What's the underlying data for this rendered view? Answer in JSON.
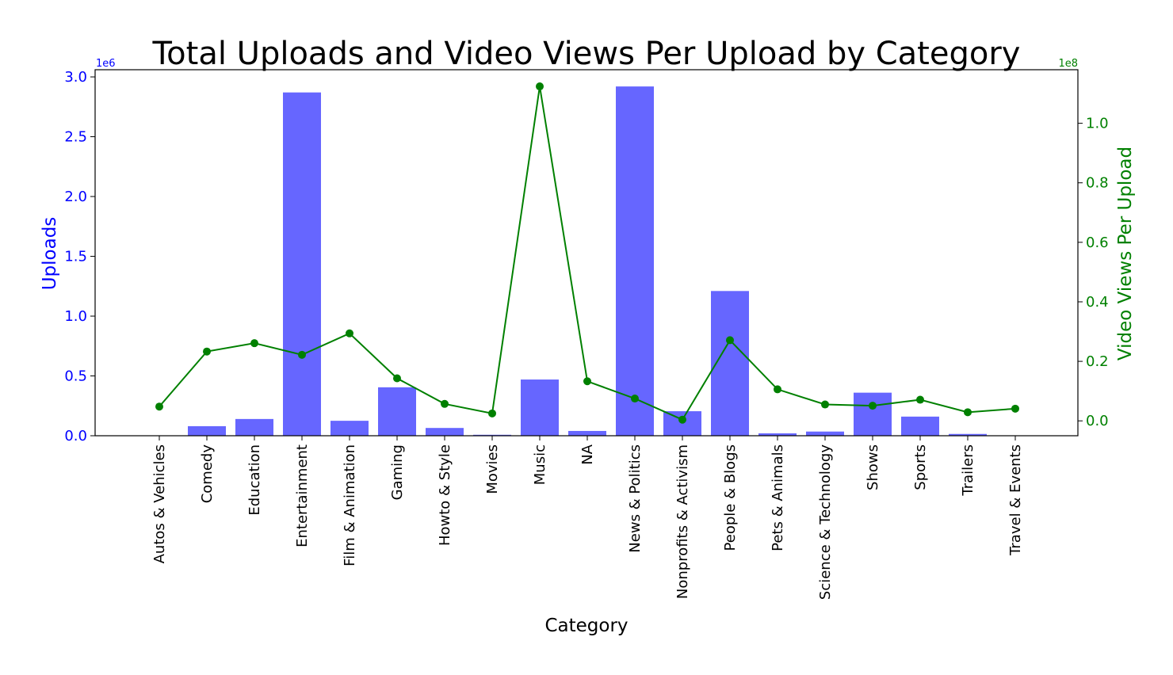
{
  "chart_data": {
    "type": "bar+line",
    "title": "Total Uploads and Video Views Per Upload by Category",
    "xlabel": "Category",
    "categories": [
      "Autos & Vehicles",
      "Comedy",
      "Education",
      "Entertainment",
      "Film & Animation",
      "Gaming",
      "Howto & Style",
      "Movies",
      "Music",
      "NA",
      "News & Politics",
      "Nonprofits & Activism",
      "People & Blogs",
      "Pets & Animals",
      "Science & Technology",
      "Shows",
      "Sports",
      "Trailers",
      "Travel & Events"
    ],
    "left_axis": {
      "label": "Uploads",
      "color": "#0000ff",
      "exponent": "1e6",
      "ylim": [
        0,
        3.06
      ],
      "ticks": [
        0.0,
        0.5,
        1.0,
        1.5,
        2.0,
        2.5,
        3.0
      ],
      "tick_labels": [
        "0.0",
        "0.5",
        "1.0",
        "1.5",
        "2.0",
        "2.5",
        "3.0"
      ]
    },
    "right_axis": {
      "label": "Video Views Per Upload",
      "color": "#008000",
      "exponent": "1e8",
      "ylim": [
        -0.05,
        1.18
      ],
      "ticks": [
        0.0,
        0.2,
        0.4,
        0.6,
        0.8,
        1.0
      ],
      "tick_labels": [
        "0.0",
        "0.2",
        "0.4",
        "0.6",
        "0.8",
        "1.0"
      ]
    },
    "series": [
      {
        "type": "bar",
        "axis": "left",
        "color": "#6666ff",
        "values": [
          0.003,
          0.08,
          0.14,
          2.87,
          0.125,
          0.405,
          0.065,
          0.008,
          0.47,
          0.04,
          2.92,
          0.205,
          1.21,
          0.02,
          0.035,
          0.36,
          0.16,
          0.015,
          0.003
        ]
      },
      {
        "type": "line",
        "axis": "right",
        "color": "#008000",
        "values": [
          0.048,
          0.233,
          0.261,
          0.222,
          0.294,
          0.143,
          0.057,
          0.025,
          1.124,
          0.133,
          0.075,
          0.004,
          0.271,
          0.106,
          0.055,
          0.051,
          0.071,
          0.029,
          0.041
        ]
      }
    ]
  }
}
